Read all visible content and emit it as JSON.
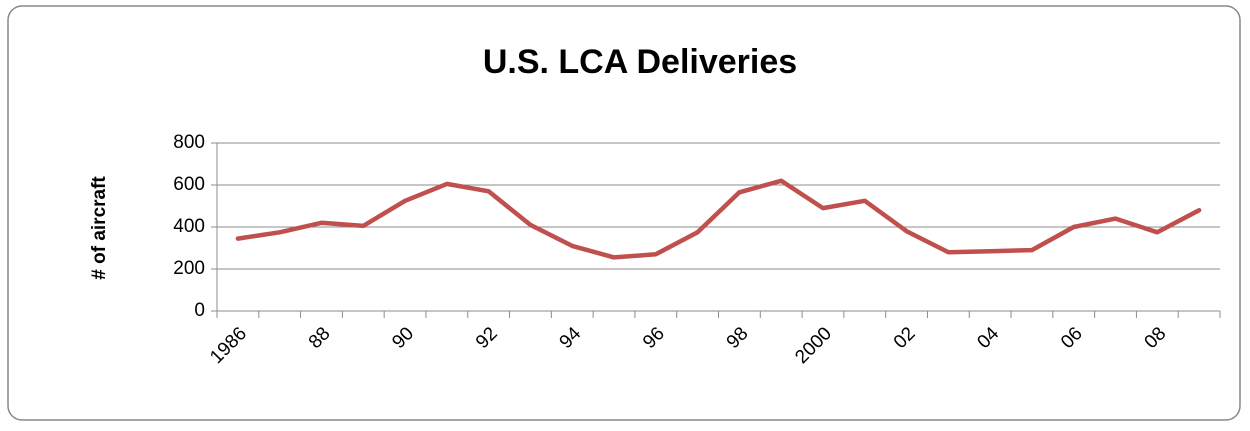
{
  "chart_data": {
    "type": "line",
    "title": "U.S. LCA Deliveries",
    "y_label": "# of aircraft",
    "categories": [
      "1986",
      null,
      "88",
      null,
      "90",
      null,
      "92",
      null,
      "94",
      null,
      "96",
      null,
      "98",
      null,
      "2000",
      null,
      "02",
      null,
      "04",
      null,
      "06",
      null,
      "08",
      null
    ],
    "series": [
      {
        "name": "U.S. LCA Deliveries",
        "color": "#c0504d",
        "values": [
          345,
          375,
          420,
          405,
          525,
          605,
          570,
          410,
          310,
          255,
          270,
          375,
          565,
          620,
          490,
          525,
          380,
          280,
          285,
          290,
          400,
          440,
          375,
          480
        ]
      }
    ],
    "ylim": [
      0,
      800
    ],
    "yticks": [
      0,
      200,
      400,
      600,
      800
    ],
    "grid": true
  }
}
